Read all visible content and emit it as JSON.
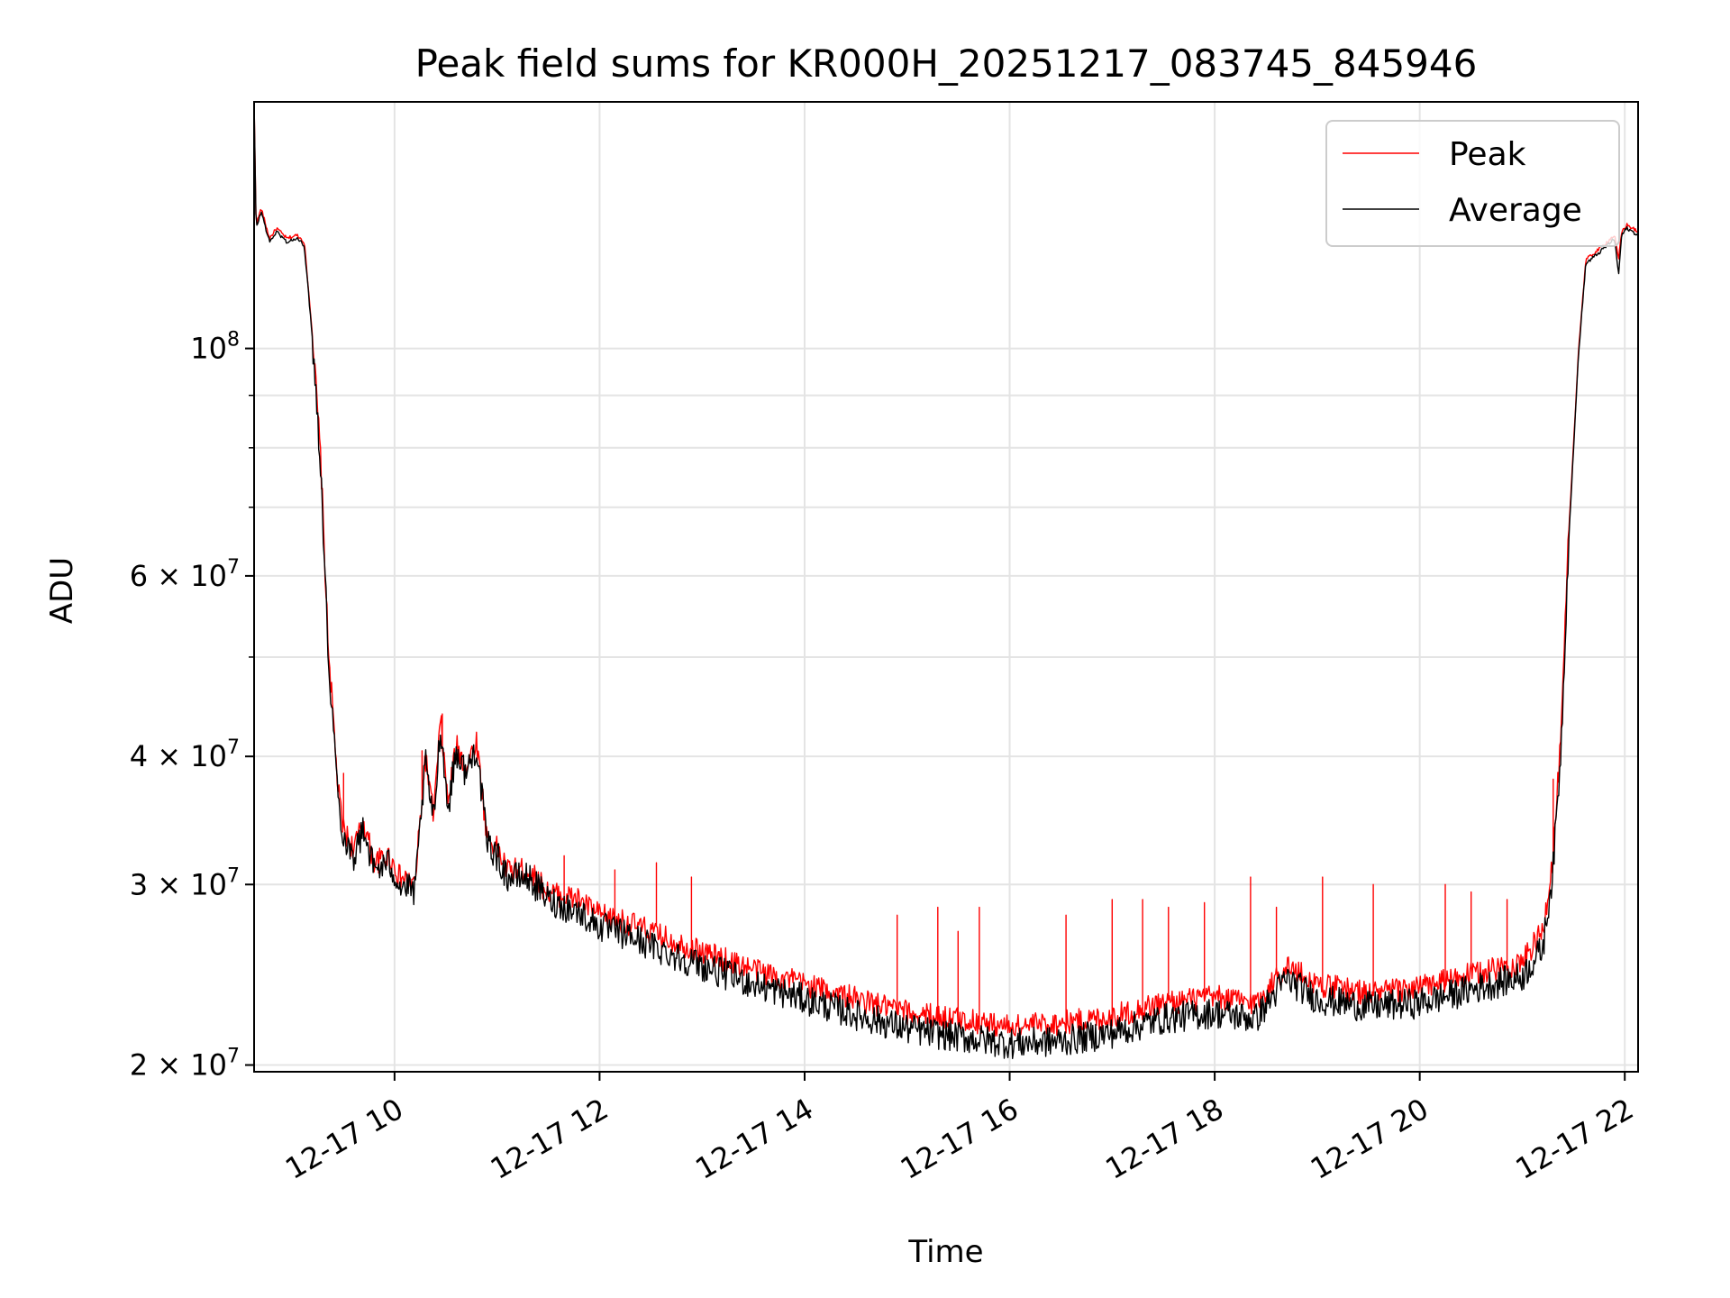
{
  "chart_data": {
    "type": "line",
    "title": "Peak field sums for KR000H_20251217_083745_845946",
    "xlabel": "Time",
    "ylabel": "ADU",
    "yscale": "log",
    "xlim": [
      8.63,
      22.13
    ],
    "ylim": [
      19700000,
      174000000
    ],
    "grid": true,
    "legend_position": "top-right",
    "x_ticks": [
      {
        "value": 10,
        "label": "12-17 10"
      },
      {
        "value": 12,
        "label": "12-17 12"
      },
      {
        "value": 14,
        "label": "12-17 14"
      },
      {
        "value": 16,
        "label": "12-17 16"
      },
      {
        "value": 18,
        "label": "12-17 18"
      },
      {
        "value": 20,
        "label": "12-17 20"
      },
      {
        "value": 22,
        "label": "12-17 22"
      }
    ],
    "y_major_ticks": [
      {
        "value": 20000000,
        "label": "2 × 10",
        "exp": "7"
      },
      {
        "value": 30000000,
        "label": "3 × 10",
        "exp": "7"
      },
      {
        "value": 40000000,
        "label": "4 × 10",
        "exp": "7"
      },
      {
        "value": 60000000,
        "label": "6 × 10",
        "exp": "7"
      },
      {
        "value": 100000000,
        "label": "10",
        "exp": "8"
      }
    ],
    "y_minor_ticks": [
      50000000,
      70000000,
      80000000,
      90000000
    ],
    "series": [
      {
        "name": "Peak",
        "color": "#ff0000",
        "points": [
          [
            8.63,
            174000000
          ],
          [
            8.65,
            132000000
          ],
          [
            8.7,
            137000000
          ],
          [
            8.78,
            128000000
          ],
          [
            8.85,
            131000000
          ],
          [
            8.95,
            128000000
          ],
          [
            9.05,
            129000000
          ],
          [
            9.12,
            127000000
          ],
          [
            9.2,
            103000000
          ],
          [
            9.28,
            78000000
          ],
          [
            9.35,
            52000000
          ],
          [
            9.45,
            37000000
          ],
          [
            9.5,
            34000000
          ],
          [
            9.6,
            32500000
          ],
          [
            9.7,
            34500000
          ],
          [
            9.8,
            31500000
          ],
          [
            9.95,
            32000000
          ],
          [
            10.05,
            30500000
          ],
          [
            10.2,
            30000000
          ],
          [
            10.3,
            40000000
          ],
          [
            10.38,
            35000000
          ],
          [
            10.45,
            43500000
          ],
          [
            10.52,
            36000000
          ],
          [
            10.6,
            41000000
          ],
          [
            10.7,
            39000000
          ],
          [
            10.8,
            41500000
          ],
          [
            10.9,
            33500000
          ],
          [
            11.0,
            32500000
          ],
          [
            11.1,
            31000000
          ],
          [
            11.3,
            31000000
          ],
          [
            11.5,
            29500000
          ],
          [
            11.8,
            29000000
          ],
          [
            12.0,
            28000000
          ],
          [
            12.3,
            27500000
          ],
          [
            12.6,
            26700000
          ],
          [
            13.0,
            25800000
          ],
          [
            13.5,
            24800000
          ],
          [
            14.0,
            24000000
          ],
          [
            14.5,
            23200000
          ],
          [
            15.0,
            22500000
          ],
          [
            15.5,
            22200000
          ],
          [
            16.0,
            21800000
          ],
          [
            16.5,
            22000000
          ],
          [
            17.0,
            22300000
          ],
          [
            17.5,
            23000000
          ],
          [
            18.0,
            23300000
          ],
          [
            18.4,
            23000000
          ],
          [
            18.7,
            25000000
          ],
          [
            19.0,
            24000000
          ],
          [
            19.5,
            23500000
          ],
          [
            20.0,
            23800000
          ],
          [
            20.5,
            24500000
          ],
          [
            21.0,
            25200000
          ],
          [
            21.2,
            27000000
          ],
          [
            21.3,
            32000000
          ],
          [
            21.38,
            42000000
          ],
          [
            21.45,
            65000000
          ],
          [
            21.55,
            100000000
          ],
          [
            21.62,
            122000000
          ],
          [
            21.75,
            125000000
          ],
          [
            21.9,
            129000000
          ],
          [
            21.94,
            122000000
          ],
          [
            21.97,
            130000000
          ],
          [
            22.02,
            132000000
          ],
          [
            22.13,
            130000000
          ]
        ],
        "spikes": [
          [
            9.5,
            38500000
          ],
          [
            10.27,
            40500000
          ],
          [
            10.47,
            44000000
          ],
          [
            11.65,
            32000000
          ],
          [
            12.15,
            31000000
          ],
          [
            12.55,
            31500000
          ],
          [
            12.9,
            30500000
          ],
          [
            14.9,
            28000000
          ],
          [
            15.3,
            28500000
          ],
          [
            15.5,
            27000000
          ],
          [
            15.7,
            28500000
          ],
          [
            16.55,
            28000000
          ],
          [
            17.0,
            29000000
          ],
          [
            17.3,
            29000000
          ],
          [
            17.55,
            28500000
          ],
          [
            17.9,
            28800000
          ],
          [
            18.35,
            30500000
          ],
          [
            18.6,
            28500000
          ],
          [
            19.05,
            30500000
          ],
          [
            19.55,
            30000000
          ],
          [
            20.25,
            30000000
          ],
          [
            20.5,
            29500000
          ],
          [
            20.85,
            29000000
          ],
          [
            21.3,
            38000000
          ]
        ]
      },
      {
        "name": "Average",
        "color": "#000000",
        "points": [
          [
            8.63,
            174000000
          ],
          [
            8.65,
            131000000
          ],
          [
            8.7,
            136000000
          ],
          [
            8.78,
            127000000
          ],
          [
            8.85,
            130000000
          ],
          [
            8.95,
            127000000
          ],
          [
            9.05,
            128000000
          ],
          [
            9.12,
            126000000
          ],
          [
            9.2,
            102000000
          ],
          [
            9.28,
            77000000
          ],
          [
            9.35,
            51000000
          ],
          [
            9.45,
            36500000
          ],
          [
            9.5,
            33500000
          ],
          [
            9.6,
            32000000
          ],
          [
            9.7,
            34000000
          ],
          [
            9.8,
            31000000
          ],
          [
            9.95,
            31500000
          ],
          [
            10.05,
            30000000
          ],
          [
            10.2,
            29500000
          ],
          [
            10.3,
            39500000
          ],
          [
            10.38,
            34500000
          ],
          [
            10.45,
            43000000
          ],
          [
            10.52,
            35500000
          ],
          [
            10.6,
            40500000
          ],
          [
            10.7,
            38500000
          ],
          [
            10.8,
            41000000
          ],
          [
            10.9,
            33000000
          ],
          [
            11.0,
            32000000
          ],
          [
            11.1,
            30500000
          ],
          [
            11.3,
            30500000
          ],
          [
            11.5,
            29000000
          ],
          [
            11.8,
            28200000
          ],
          [
            12.0,
            27300000
          ],
          [
            12.3,
            26700000
          ],
          [
            12.6,
            25900000
          ],
          [
            13.0,
            25000000
          ],
          [
            13.5,
            24000000
          ],
          [
            14.0,
            23200000
          ],
          [
            14.5,
            22400000
          ],
          [
            15.0,
            21700000
          ],
          [
            15.5,
            21300000
          ],
          [
            16.0,
            21000000
          ],
          [
            16.5,
            21100000
          ],
          [
            17.0,
            21500000
          ],
          [
            17.5,
            22200000
          ],
          [
            18.0,
            22500000
          ],
          [
            18.4,
            22200000
          ],
          [
            18.7,
            24300000
          ],
          [
            19.0,
            23200000
          ],
          [
            19.5,
            22800000
          ],
          [
            20.0,
            23000000
          ],
          [
            20.5,
            23700000
          ],
          [
            21.0,
            24400000
          ],
          [
            21.2,
            26000000
          ],
          [
            21.3,
            31000000
          ],
          [
            21.38,
            41000000
          ],
          [
            21.45,
            64000000
          ],
          [
            21.55,
            99000000
          ],
          [
            21.62,
            121000000
          ],
          [
            21.75,
            124000000
          ],
          [
            21.9,
            128000000
          ],
          [
            21.94,
            118000000
          ],
          [
            21.97,
            129000000
          ],
          [
            22.02,
            131000000
          ],
          [
            22.13,
            129000000
          ]
        ]
      }
    ]
  }
}
